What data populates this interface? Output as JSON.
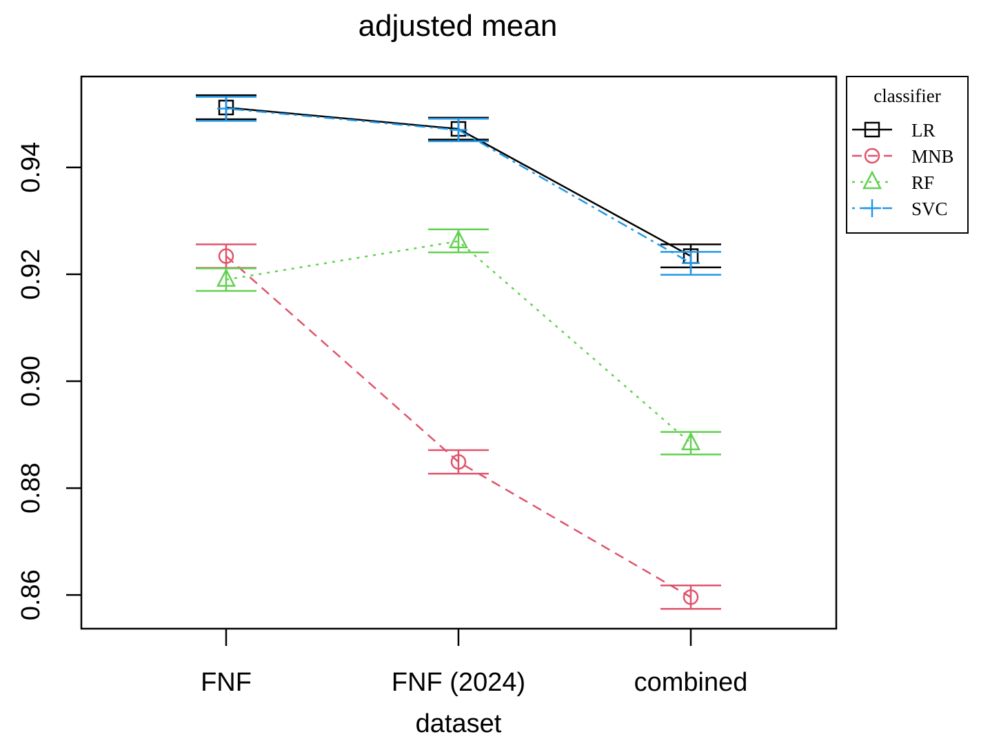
{
  "chart_data": {
    "type": "line",
    "title": "adjusted mean",
    "xlabel": "dataset",
    "ylabel": "",
    "categories": [
      "FNF",
      "FNF (2024)",
      "combined"
    ],
    "ylim": [
      0.8537,
      0.957
    ],
    "yticks": [
      0.86,
      0.88,
      0.9,
      0.92,
      0.94
    ],
    "ytick_labels": [
      "0.86",
      "0.88",
      "0.90",
      "0.92",
      "0.94"
    ],
    "grid": false,
    "legend": {
      "title": "classifier",
      "position": "right"
    },
    "series": [
      {
        "name": "LR",
        "color": "#000000",
        "linestyle": "solid",
        "marker": "square",
        "values": [
          0.9512,
          0.9472,
          0.9234
        ],
        "lower": [
          0.949,
          0.9452,
          0.9213
        ],
        "upper": [
          0.9535,
          0.9493,
          0.9256
        ]
      },
      {
        "name": "MNB",
        "color": "#DF536B",
        "linestyle": "dashed",
        "marker": "circle",
        "values": [
          0.9234,
          0.8849,
          0.8596
        ],
        "lower": [
          0.9212,
          0.8827,
          0.8574
        ],
        "upper": [
          0.9256,
          0.8871,
          0.8618
        ]
      },
      {
        "name": "RF",
        "color": "#61D04F",
        "linestyle": "dotted",
        "marker": "triangle",
        "values": [
          0.919,
          0.9262,
          0.8884
        ],
        "lower": [
          0.9169,
          0.9241,
          0.8863
        ],
        "upper": [
          0.9211,
          0.9284,
          0.8905
        ]
      },
      {
        "name": "SVC",
        "color": "#2297E6",
        "linestyle": "dashdot",
        "marker": "plus",
        "values": [
          0.951,
          0.947,
          0.9221
        ],
        "lower": [
          0.9487,
          0.9449,
          0.9199
        ],
        "upper": [
          0.9532,
          0.9491,
          0.9242
        ]
      }
    ]
  }
}
